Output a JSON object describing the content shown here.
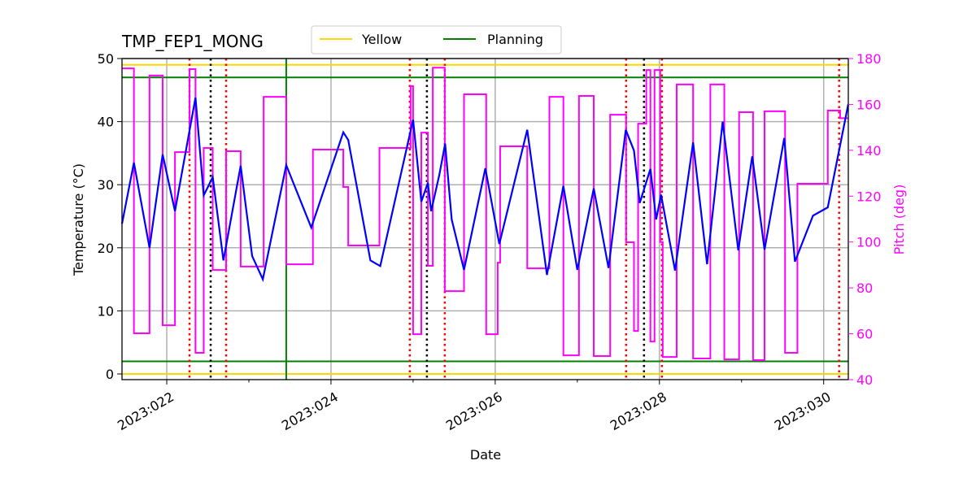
{
  "chart_data": {
    "type": "line",
    "title": "TMP_FEP1_MONG",
    "xlabel": "Date",
    "ylabel": "Temperature ($^\\circ$C)",
    "ylabel_display": "Temperature (°C)",
    "y2label": "Pitch (deg)",
    "xlim": [
      21.455,
      30.3
    ],
    "ylim": [
      -0.9,
      50
    ],
    "y2lim": [
      40,
      180
    ],
    "grid": true,
    "legend_placement": "top-center",
    "x_ticks": [
      22,
      24,
      26,
      28,
      30
    ],
    "x_tick_labels": [
      "2023:022",
      "2023:024",
      "2023:026",
      "2023:028",
      "2023:030"
    ],
    "y_ticks": [
      0,
      10,
      20,
      30,
      40,
      50
    ],
    "y_tick_labels": [
      "0",
      "10",
      "20",
      "30",
      "40",
      "50"
    ],
    "y2_ticks": [
      40,
      60,
      80,
      100,
      120,
      140,
      160,
      180
    ],
    "y2_tick_labels": [
      "40",
      "60",
      "80",
      "100",
      "120",
      "140",
      "160",
      "180"
    ],
    "legend": [
      {
        "name": "Yellow",
        "color": "#ffd700"
      },
      {
        "name": "Planning",
        "color": "#008000"
      }
    ],
    "limits": [
      {
        "name": "Yellow",
        "color": "#ffd700",
        "values": [
          49,
          0
        ]
      },
      {
        "name": "Planning",
        "color": "#008000",
        "values": [
          47,
          2
        ]
      }
    ],
    "colors": {
      "temperature": "#0000ff",
      "pitch": "#ff00ff",
      "red_events": "#ff0000",
      "black_events": "#000000",
      "green_event": "#008000"
    },
    "red_event_lines": [
      22.277,
      22.723,
      24.96,
      25.386,
      27.594,
      28.03,
      30.188
    ],
    "black_event_lines": [
      22.535,
      25.168,
      27.812
    ],
    "green_event_lines": [
      23.455
    ],
    "temperature": {
      "x": [
        21.455,
        21.6,
        21.79,
        21.95,
        22.1,
        22.35,
        22.45,
        22.56,
        22.69,
        22.9,
        23.04,
        23.17,
        23.455,
        23.76,
        24.15,
        24.21,
        24.48,
        24.6,
        25.0,
        25.1,
        25.18,
        25.22,
        25.32,
        25.39,
        25.47,
        25.62,
        25.88,
        26.05,
        26.39,
        26.63,
        26.83,
        27.0,
        27.2,
        27.38,
        27.59,
        27.69,
        27.76,
        27.89,
        27.96,
        28.02,
        28.19,
        28.41,
        28.58,
        28.77,
        28.96,
        29.13,
        29.28,
        29.52,
        29.65,
        29.87,
        30.05,
        30.3
      ],
      "y": [
        23.8,
        33.5,
        20,
        34.8,
        25.8,
        43.8,
        28.3,
        31.2,
        18,
        33,
        18.7,
        15,
        33.1,
        23.2,
        38.3,
        37.1,
        18.0,
        17.1,
        40.3,
        27.3,
        30.3,
        25.8,
        31.6,
        36.5,
        24.5,
        16.5,
        32.6,
        20.6,
        38.7,
        15.7,
        29.8,
        16.5,
        29.4,
        16.8,
        38.7,
        35.4,
        27.1,
        32.5,
        24.5,
        28.4,
        16.4,
        36.7,
        17.4,
        40,
        19.6,
        34.5,
        19.7,
        37.4,
        17.8,
        25.1,
        26.4,
        42.8
      ]
    },
    "pitch": {
      "x": [
        21.455,
        21.6,
        21.79,
        21.95,
        22.1,
        22.277,
        22.35,
        22.45,
        22.56,
        22.723,
        22.9,
        23.18,
        23.455,
        23.78,
        24.15,
        24.21,
        24.59,
        24.97,
        25.0,
        25.1,
        25.18,
        25.24,
        25.386,
        25.62,
        25.89,
        26.03,
        26.06,
        26.39,
        26.66,
        26.83,
        27.02,
        27.2,
        27.4,
        27.594,
        27.69,
        27.74,
        27.84,
        27.89,
        27.94,
        28.01,
        28.04,
        28.21,
        28.41,
        28.62,
        28.79,
        28.97,
        29.14,
        29.28,
        29.53,
        29.68,
        30.05,
        30.2
      ],
      "y": [
        175.7,
        60.2,
        172.6,
        63.7,
        139.2,
        175.4,
        51.7,
        141,
        87.8,
        139.6,
        89.3,
        163.3,
        90.3,
        140.3,
        124,
        98.5,
        141,
        168,
        59.8,
        147.7,
        89.6,
        176,
        78.6,
        164.4,
        59.8,
        91,
        141.7,
        88.5,
        163.3,
        50.6,
        163.7,
        50.3,
        155.5,
        99.9,
        61.2,
        151.6,
        175,
        56.6,
        175,
        100,
        49.9,
        168.7,
        49.2,
        168.7,
        48.8,
        156.6,
        48.5,
        157,
        51.7,
        125.4,
        157.3,
        154
      ]
    }
  }
}
